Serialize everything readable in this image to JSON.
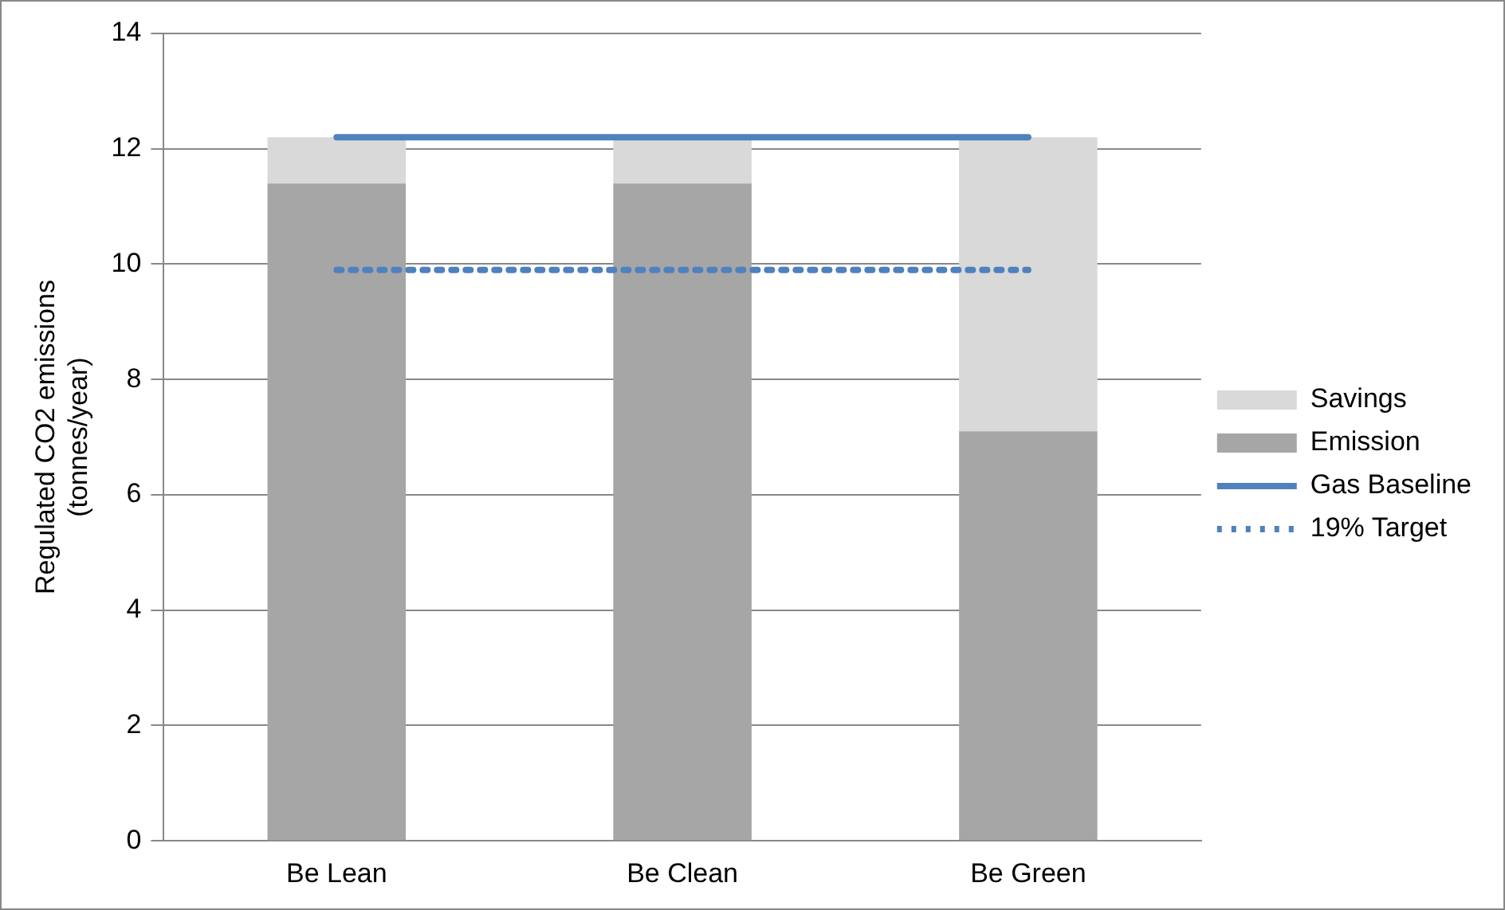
{
  "chart_data": {
    "type": "bar",
    "stacked": true,
    "categories": [
      "Be Lean",
      "Be Clean",
      "Be Green"
    ],
    "ylabel": "Regulated CO2 emissions (tonnes/year)",
    "ylim": [
      0,
      14
    ],
    "yticks": [
      0,
      2,
      4,
      6,
      8,
      10,
      12,
      14
    ],
    "grid": "y",
    "legend": "right",
    "series": [
      {
        "name": "Emission",
        "color": "#a6a6a6",
        "values": [
          11.4,
          11.4,
          7.1
        ]
      },
      {
        "name": "Savings",
        "color": "#d9d9d9",
        "values": [
          0.8,
          0.8,
          5.1
        ]
      },
      {
        "name": "Gas Baseline",
        "type": "line",
        "color": "#4f81bd",
        "line_style": "solid",
        "marker": "none",
        "values": [
          12.2,
          12.2,
          12.2
        ]
      },
      {
        "name": "19% Target",
        "type": "line",
        "color": "#4f81bd",
        "line_style": "dotted",
        "marker": "none",
        "values": [
          9.9,
          9.9,
          9.9
        ]
      }
    ]
  }
}
